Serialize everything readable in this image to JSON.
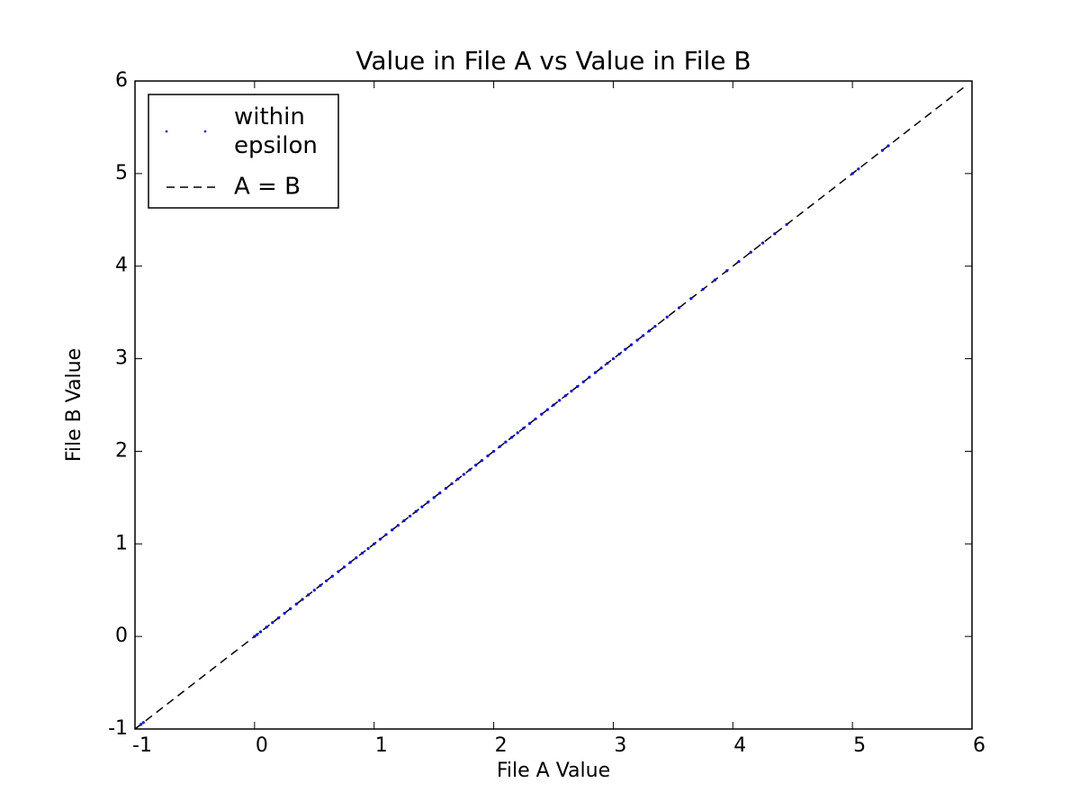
{
  "chart_data": {
    "type": "scatter",
    "title": "Value in File A vs Value in File B",
    "xlabel": "File A Value",
    "ylabel": "File B Value",
    "xlim": [
      -1,
      6
    ],
    "ylim": [
      -1,
      6
    ],
    "xticks": [
      -1,
      0,
      1,
      2,
      3,
      4,
      5,
      6
    ],
    "yticks": [
      -1,
      0,
      1,
      2,
      3,
      4,
      5,
      6
    ],
    "grid": false,
    "legend": "upper-left",
    "series": [
      {
        "name": "within\nepsilon",
        "type": "scatter",
        "color": "#0000ff",
        "x": [
          -0.95,
          -0.93,
          0.0,
          0.02,
          0.05,
          0.1,
          0.15,
          0.2,
          0.25,
          0.3,
          0.35,
          0.4,
          0.45,
          0.5,
          0.55,
          0.6,
          0.65,
          0.7,
          0.75,
          0.8,
          0.85,
          0.9,
          0.95,
          1.0,
          1.05,
          1.1,
          1.15,
          1.2,
          1.25,
          1.3,
          1.35,
          1.4,
          1.45,
          1.5,
          1.55,
          1.6,
          1.65,
          1.7,
          1.75,
          1.8,
          1.85,
          1.9,
          1.95,
          2.0,
          2.05,
          2.1,
          2.15,
          2.2,
          2.25,
          2.3,
          2.35,
          2.4,
          2.45,
          2.5,
          2.55,
          2.6,
          2.65,
          2.7,
          2.75,
          2.8,
          2.85,
          2.9,
          2.95,
          3.0,
          3.05,
          3.1,
          3.15,
          3.2,
          3.25,
          3.3,
          3.35,
          3.45,
          3.55,
          3.65,
          3.75,
          3.85,
          3.95,
          4.05,
          4.15,
          4.25,
          4.35,
          4.45,
          5.0,
          5.05,
          5.25,
          5.3
        ],
        "y": [
          -0.95,
          -0.93,
          0.0,
          0.02,
          0.05,
          0.1,
          0.15,
          0.2,
          0.25,
          0.3,
          0.35,
          0.4,
          0.45,
          0.5,
          0.55,
          0.6,
          0.65,
          0.7,
          0.75,
          0.8,
          0.85,
          0.9,
          0.95,
          1.0,
          1.05,
          1.1,
          1.15,
          1.2,
          1.25,
          1.3,
          1.35,
          1.4,
          1.45,
          1.5,
          1.55,
          1.6,
          1.65,
          1.7,
          1.75,
          1.8,
          1.85,
          1.9,
          1.95,
          2.0,
          2.05,
          2.1,
          2.15,
          2.2,
          2.25,
          2.3,
          2.35,
          2.4,
          2.45,
          2.5,
          2.55,
          2.6,
          2.65,
          2.7,
          2.75,
          2.8,
          2.85,
          2.9,
          2.95,
          3.0,
          3.05,
          3.1,
          3.15,
          3.2,
          3.25,
          3.3,
          3.35,
          3.45,
          3.55,
          3.65,
          3.75,
          3.85,
          3.95,
          4.05,
          4.15,
          4.25,
          4.35,
          4.45,
          5.0,
          5.05,
          5.25,
          5.3
        ]
      },
      {
        "name": "A = B",
        "type": "line",
        "color": "#000000",
        "dashed": true,
        "x": [
          -1,
          5.94
        ],
        "y": [
          -1,
          5.94
        ]
      }
    ]
  }
}
